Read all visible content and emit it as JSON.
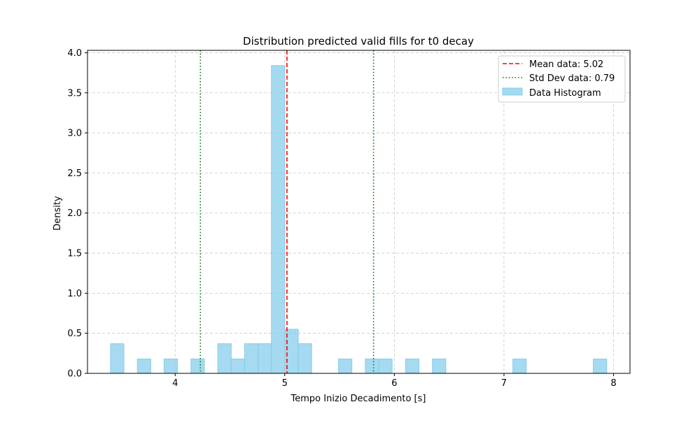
{
  "chart_data": {
    "type": "bar",
    "title": "Distribution predicted valid fills for t0 decay",
    "xlabel": "Tempo Inizio Decadimento [s]",
    "ylabel": "Density",
    "xlim": [
      3.2,
      8.15
    ],
    "ylim": [
      0,
      4.03
    ],
    "x_ticks": [
      4,
      5,
      6,
      7,
      8
    ],
    "y_ticks": [
      0.0,
      0.5,
      1.0,
      1.5,
      2.0,
      2.5,
      3.0,
      3.5,
      4.0
    ],
    "grid": true,
    "legend_position": "top-right",
    "series": [
      {
        "name": "Data Histogram",
        "kind": "histogram",
        "color": "#87ceeb",
        "bin_width": 0.1224,
        "bins": [
          {
            "x0": 3.41,
            "value": 0.37
          },
          {
            "x0": 3.655,
            "value": 0.18
          },
          {
            "x0": 3.899,
            "value": 0.18
          },
          {
            "x0": 4.144,
            "value": 0.18
          },
          {
            "x0": 4.389,
            "value": 0.37
          },
          {
            "x0": 4.511,
            "value": 0.18
          },
          {
            "x0": 4.634,
            "value": 0.37
          },
          {
            "x0": 4.756,
            "value": 0.37
          },
          {
            "x0": 4.878,
            "value": 3.84
          },
          {
            "x0": 5.001,
            "value": 0.55
          },
          {
            "x0": 5.123,
            "value": 0.37
          },
          {
            "x0": 5.49,
            "value": 0.18
          },
          {
            "x0": 5.735,
            "value": 0.18
          },
          {
            "x0": 5.857,
            "value": 0.18
          },
          {
            "x0": 6.102,
            "value": 0.18
          },
          {
            "x0": 6.347,
            "value": 0.18
          },
          {
            "x0": 7.081,
            "value": 0.18
          },
          {
            "x0": 7.815,
            "value": 0.18
          }
        ]
      },
      {
        "name": "Mean data: 5.02",
        "kind": "vline",
        "x": 5.02,
        "color": "#ff0000",
        "style": "dashed"
      },
      {
        "name": "Std Dev data: 0.79",
        "kind": "vlines",
        "x": [
          4.23,
          5.81
        ],
        "color": "#008000",
        "style": "dotted"
      }
    ]
  }
}
